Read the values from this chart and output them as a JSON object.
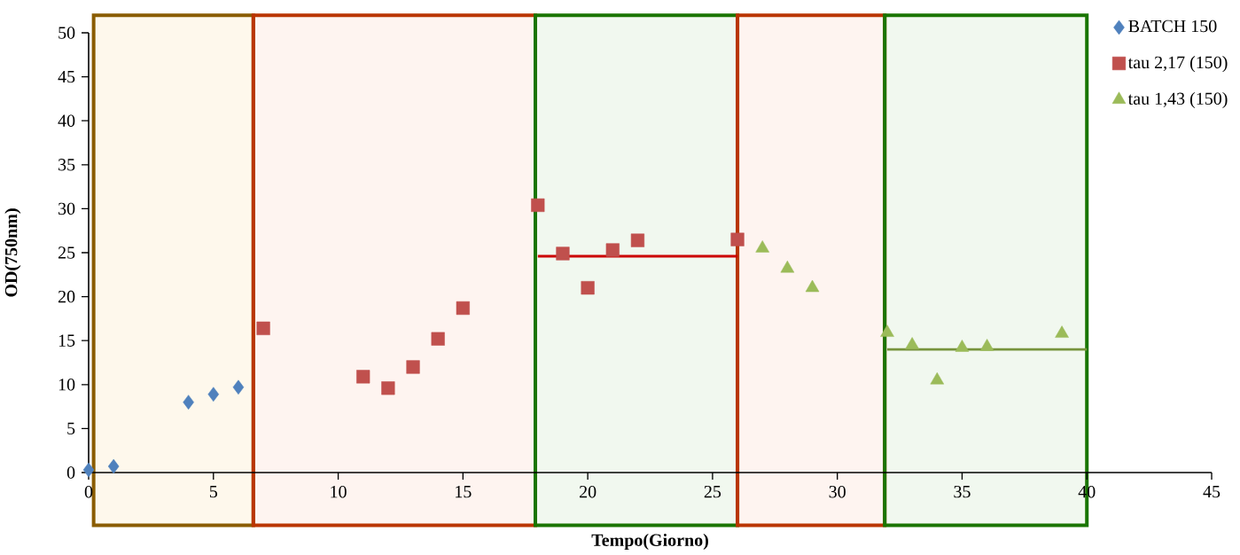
{
  "chart_data": {
    "type": "scatter",
    "xlabel": "Tempo(Giorno)",
    "ylabel": "OD(750nm)",
    "xlim": [
      0,
      45
    ],
    "xticks": [
      0,
      5,
      10,
      15,
      20,
      25,
      30,
      35,
      40,
      45
    ],
    "ylim": [
      0,
      50
    ],
    "yticks": [
      0,
      5,
      10,
      15,
      20,
      25,
      30,
      35,
      40,
      45,
      50
    ],
    "grid": false,
    "legend": "top right",
    "bands": [
      {
        "axis": "x",
        "from": 0.2,
        "to": 6.6,
        "color": "#fef8ec"
      },
      {
        "axis": "x",
        "from": 6.6,
        "to": 17.9,
        "color": "#fef4f0"
      },
      {
        "axis": "x",
        "from": 17.9,
        "to": 26,
        "color": "#f1f8ef"
      },
      {
        "axis": "x",
        "from": 26,
        "to": 31.9,
        "color": "#fef4f0"
      },
      {
        "axis": "x",
        "from": 31.9,
        "to": 40,
        "color": "#f1f8ef"
      }
    ],
    "series": [
      {
        "name": "BATCH 150",
        "color": "#4f81bd",
        "marker": "diamond",
        "x": [
          0,
          1,
          4,
          5,
          6
        ],
        "values": [
          0.3,
          0.7,
          8.0,
          8.9,
          9.7
        ]
      },
      {
        "name": "tau 2,17 (150)",
        "color": "#c0504d",
        "marker": "square",
        "x": [
          7,
          11,
          12,
          13,
          14,
          15,
          18,
          19,
          20,
          21,
          22,
          26
        ],
        "values": [
          16.4,
          10.9,
          9.6,
          12.0,
          15.2,
          18.7,
          30.4,
          24.9,
          21.0,
          25.3,
          26.4,
          26.5
        ]
      },
      {
        "name": "tau 1,43 (150)",
        "color": "#9bbb59",
        "marker": "triangle",
        "x": [
          27,
          28,
          29,
          32,
          33,
          34,
          35,
          36,
          39
        ],
        "values": [
          25.5,
          23.2,
          21.0,
          15.9,
          14.5,
          10.5,
          14.2,
          14.3,
          15.8
        ]
      },
      {
        "type": "line",
        "color": "#cc0000",
        "marker": "none",
        "x": [
          18,
          26
        ],
        "values": [
          24.6,
          24.6
        ]
      },
      {
        "type": "line",
        "color": "#77933c",
        "marker": "none",
        "x": [
          32,
          40
        ],
        "values": [
          14.0,
          14.0
        ]
      }
    ]
  }
}
